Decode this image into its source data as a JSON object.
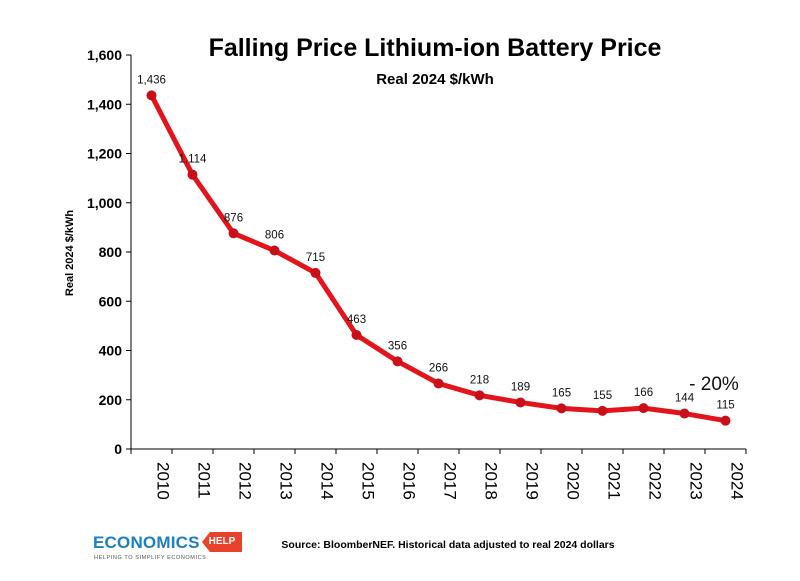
{
  "chart_data": {
    "type": "line",
    "title": "Falling Price Lithium-ion Battery Price",
    "subtitle": "Real 2024 $/kWh",
    "ylabel": "Real 2024 $/kWh",
    "xlabel": "",
    "ylim": [
      0,
      1600
    ],
    "yticks": [
      0,
      200,
      400,
      600,
      800,
      1000,
      1200,
      1400,
      1600
    ],
    "ytick_labels": [
      "0",
      "200",
      "400",
      "600",
      "800",
      "1,000",
      "1,200",
      "1,400",
      "1,600"
    ],
    "categories": [
      "2010",
      "2011",
      "2012",
      "2013",
      "2014",
      "2015",
      "2016",
      "2017",
      "2018",
      "2019",
      "2020",
      "2021",
      "2022",
      "2023",
      "2024"
    ],
    "values": [
      1436,
      1114,
      876,
      806,
      715,
      463,
      356,
      266,
      218,
      189,
      165,
      155,
      166,
      144,
      115
    ],
    "value_labels": [
      "1,436",
      "1,114",
      "876",
      "806",
      "715",
      "463",
      "356",
      "266",
      "218",
      "189",
      "165",
      "155",
      "166",
      "144",
      "115"
    ],
    "annotation": "- 20%",
    "grid": false,
    "line_color": "#e3141b"
  },
  "footer": {
    "source": "Source: BloomberNEF. Historical data adjusted to real 2024 dollars",
    "logo_word": "ECONOMICS",
    "logo_tag": "HELP",
    "logo_tagline": "HELPING TO SIMPLIFY ECONOMICS",
    "logo_color": "#1d7fc0",
    "logo_tag_color": "#e8412c"
  }
}
